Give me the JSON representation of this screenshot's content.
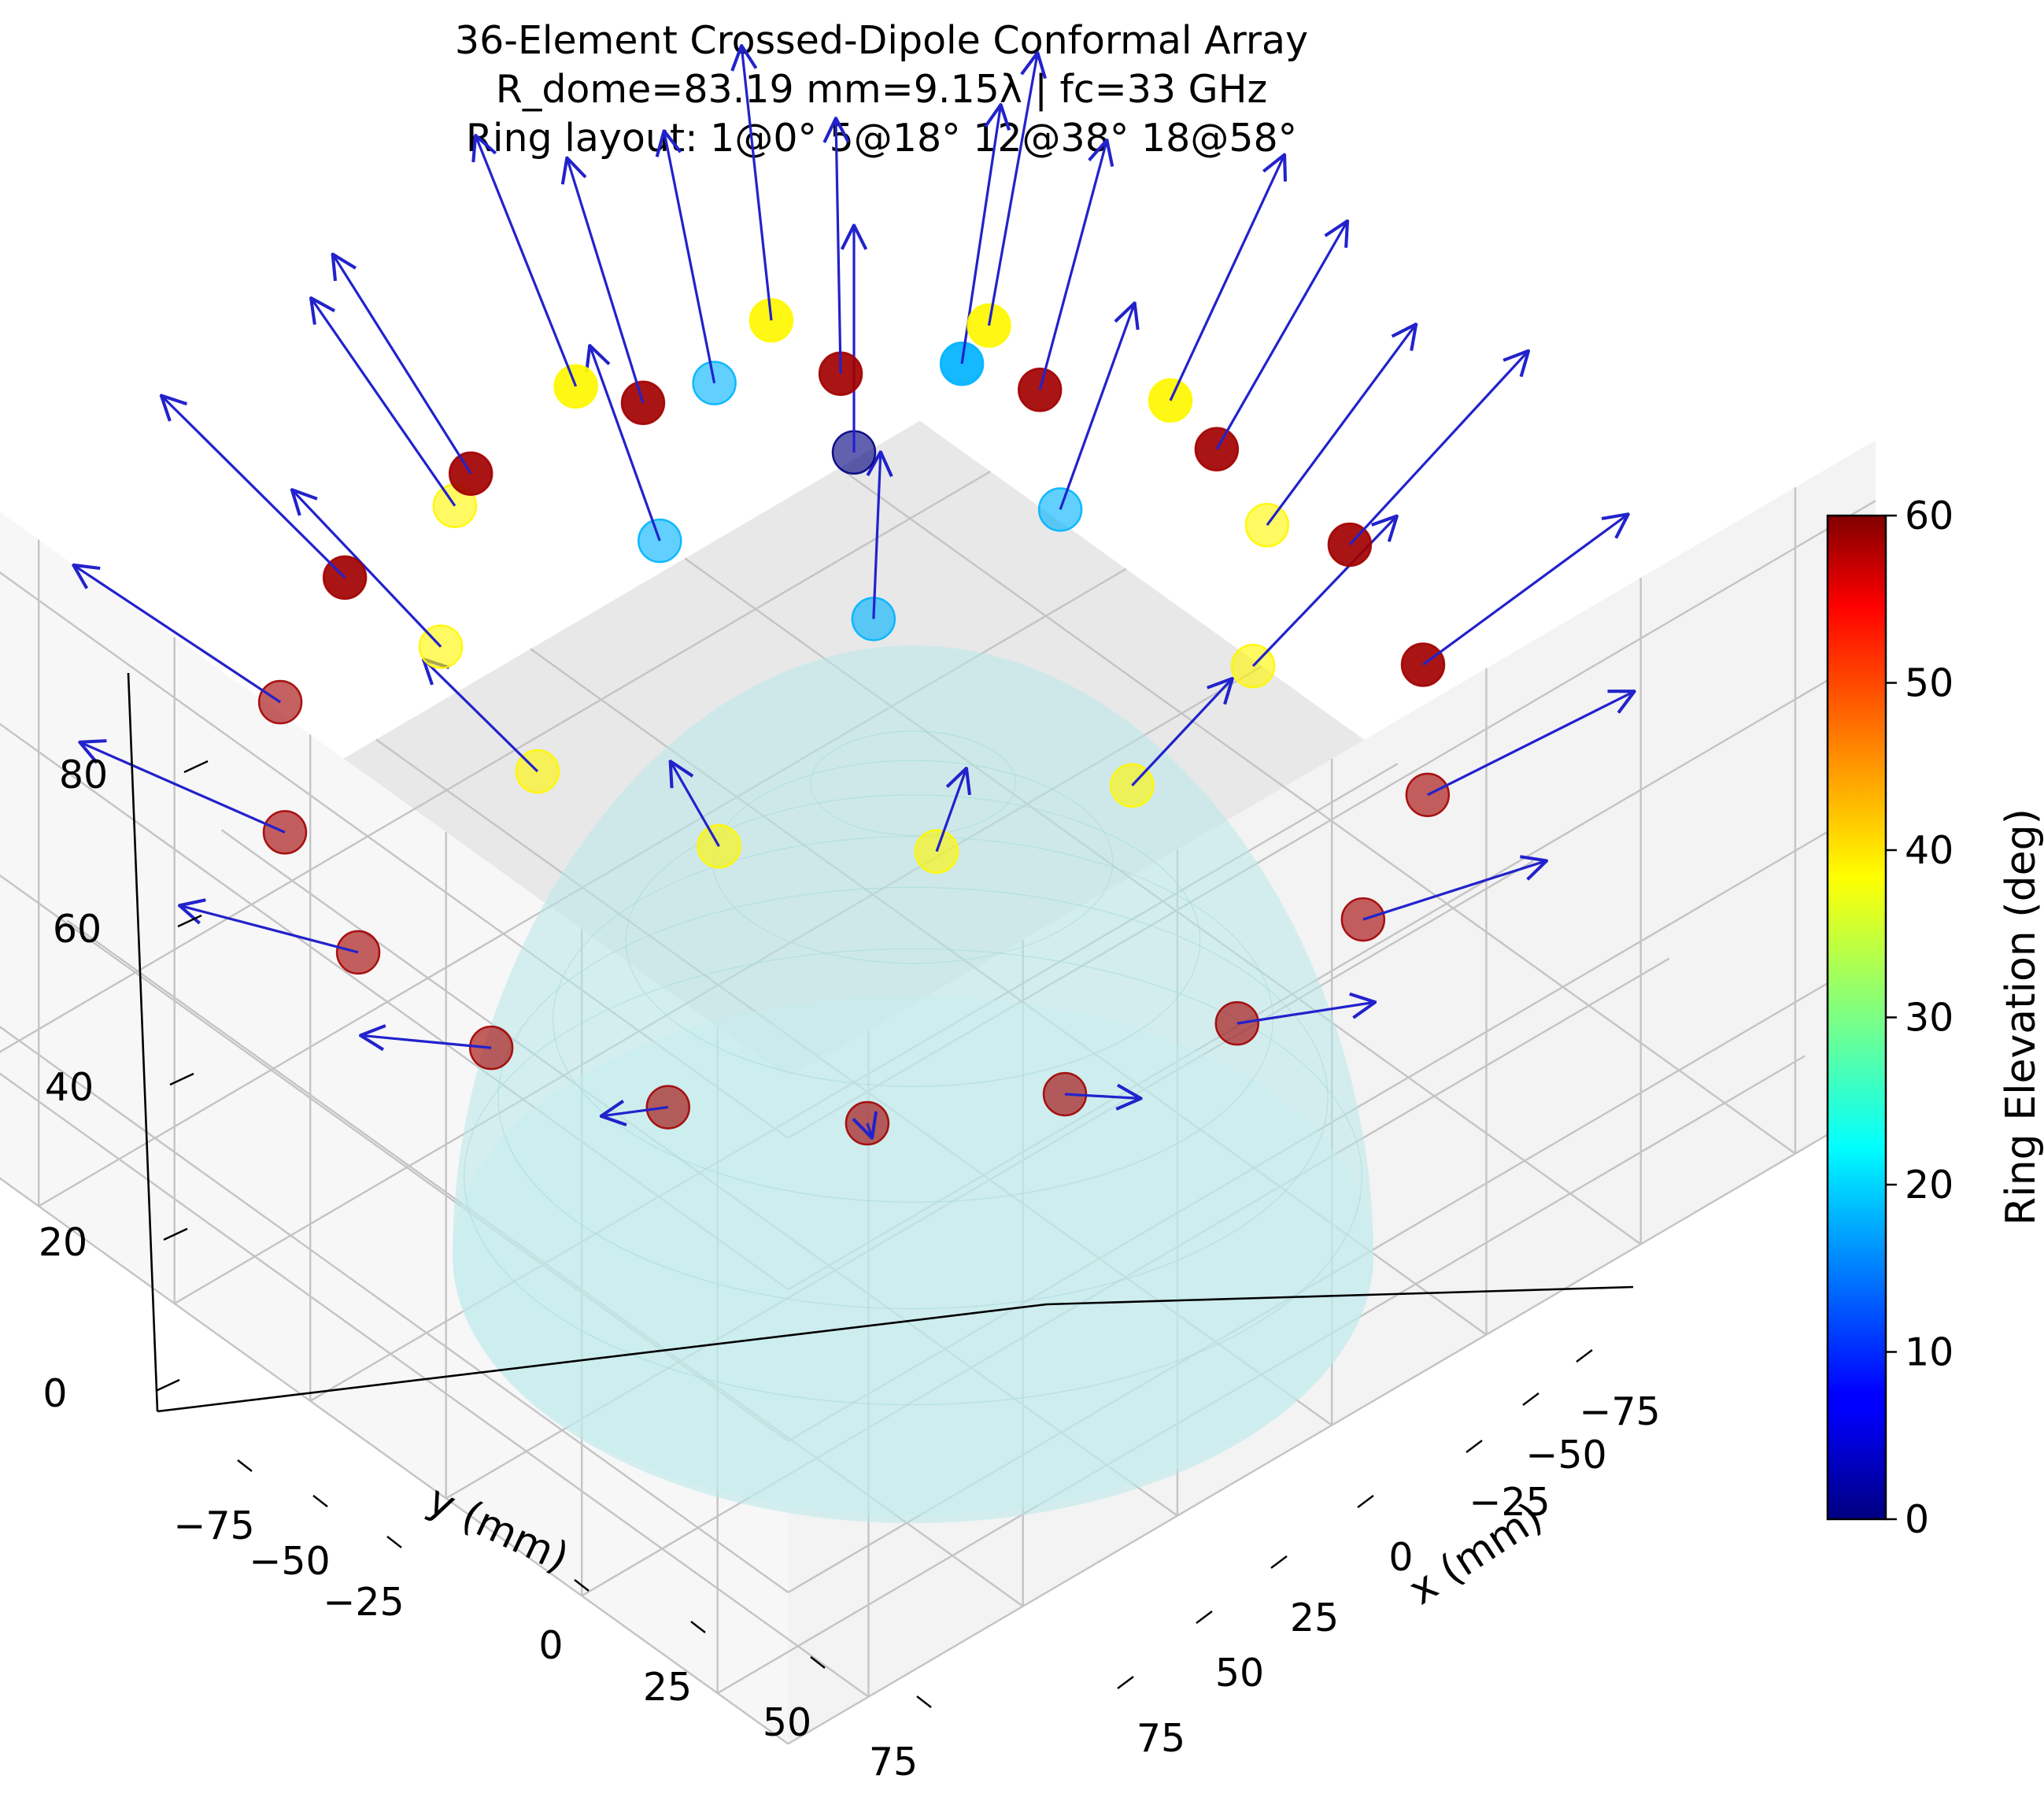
{
  "chart_data": {
    "type": "scatter3d",
    "title_lines": [
      "36-Element Crossed-Dipole Conformal Array",
      "R_dome=83.19 mm=9.15λ  |  fc=33 GHz",
      "Ring layout: 1@0°  5@18°  12@38°  18@58°"
    ],
    "xlabel": "x (mm)",
    "ylabel": "y (mm)",
    "zlabel": "",
    "x_ticks": [
      "−75",
      "−50",
      "−25",
      "0",
      "25",
      "50",
      "75"
    ],
    "y_ticks": [
      "−75",
      "−50",
      "−25",
      "0",
      "25",
      "50",
      "75"
    ],
    "z_ticks": [
      "0",
      "20",
      "40",
      "60",
      "80"
    ],
    "xlim": [
      -88,
      88
    ],
    "ylim": [
      -88,
      88
    ],
    "zlim": [
      0,
      88
    ],
    "grid": true,
    "dome_radius_mm": 83.19,
    "dome_color": "#b8e8ea",
    "arrow_color": "#2222cc",
    "rings": [
      {
        "elevation_deg": 0,
        "count": 1,
        "colatitude_deg": 0
      },
      {
        "elevation_deg": 18,
        "count": 5,
        "colatitude_deg": 18
      },
      {
        "elevation_deg": 38,
        "count": 12,
        "colatitude_deg": 38
      },
      {
        "elevation_deg": 58,
        "count": 18,
        "colatitude_deg": 58
      }
    ],
    "colorbar": {
      "label": "Ring Elevation (deg)",
      "min": 0,
      "max": 60,
      "ticks": [
        "0",
        "10",
        "20",
        "30",
        "40",
        "50",
        "60"
      ],
      "colormap": "jet"
    }
  }
}
